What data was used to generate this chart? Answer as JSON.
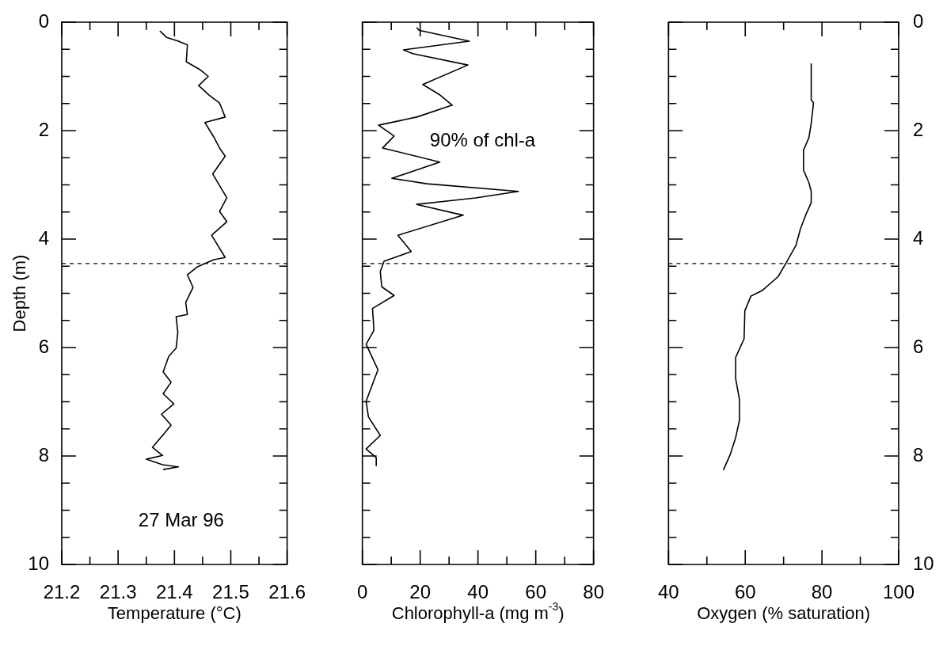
{
  "chart_data": [
    {
      "type": "line",
      "xlabel": "Temperature (°C)",
      "ylabel": "Depth (m)",
      "marker": "none",
      "xlim": [
        21.2,
        21.6
      ],
      "xticks": [
        21.2,
        {
          "value": 21.25,
          "label": null
        },
        21.3,
        {
          "value": 21.35,
          "label": null
        },
        21.4,
        {
          "value": 21.45,
          "label": null
        },
        21.5,
        {
          "value": 21.55,
          "label": null
        },
        21.6
      ],
      "ylim": [
        10,
        0
      ],
      "yticks": [
        0,
        {
          "value": 0.5,
          "label": null
        },
        {
          "value": 1,
          "label": null
        },
        {
          "value": 1.5,
          "label": null
        },
        2,
        {
          "value": 2.5,
          "label": null
        },
        {
          "value": 3,
          "label": null
        },
        {
          "value": 3.5,
          "label": null
        },
        4,
        {
          "value": 4.5,
          "label": null
        },
        {
          "value": 5,
          "label": null
        },
        {
          "value": 5.5,
          "label": null
        },
        6,
        {
          "value": 6.5,
          "label": null
        },
        {
          "value": 7,
          "label": null
        },
        {
          "value": 7.5,
          "label": null
        },
        8,
        {
          "value": 8.5,
          "label": null
        },
        {
          "value": 9,
          "label": null
        },
        {
          "value": 9.5,
          "label": null
        },
        10
      ],
      "series": [
        {
          "color": "#000000",
          "x": [
            21.374,
            21.386,
            21.407,
            21.423,
            21.421,
            21.446,
            21.46,
            21.443,
            21.461,
            21.48,
            21.49,
            21.454,
            21.47,
            21.48,
            21.49,
            21.468,
            21.493,
            21.48,
            21.493,
            21.466,
            21.49,
            21.47,
            21.441,
            21.423,
            21.433,
            21.42,
            21.423,
            21.403,
            21.406,
            21.403,
            21.39,
            21.38,
            21.394,
            21.38,
            21.399,
            21.377,
            21.394,
            21.379,
            21.361,
            21.379,
            21.35,
            21.379,
            21.407,
            21.38
          ],
          "values": [
            0.16,
            0.28,
            0.35,
            0.42,
            0.73,
            0.88,
            1.0,
            1.17,
            1.34,
            1.49,
            1.75,
            1.85,
            2.12,
            2.32,
            2.47,
            2.8,
            3.24,
            3.49,
            3.68,
            3.93,
            4.34,
            4.38,
            4.51,
            4.66,
            4.89,
            5.17,
            5.39,
            5.43,
            5.72,
            6.01,
            6.16,
            6.45,
            6.64,
            6.85,
            7.04,
            7.23,
            7.43,
            7.62,
            7.84,
            7.99,
            8.06,
            8.16,
            8.2,
            8.25
          ]
        }
      ],
      "ref_lines": [
        {
          "axis": "y",
          "value": 4.45,
          "line_style": "dashed"
        }
      ],
      "annotations": [
        "27 Mar 96"
      ]
    },
    {
      "type": "line",
      "xlabel": "Chlorophyll-a (mg m$^{-3}$)",
      "marker": "none",
      "tick_labels": "x",
      "xlim": [
        0,
        80
      ],
      "xticks": [
        0,
        {
          "value": 10,
          "label": null
        },
        20,
        {
          "value": 30,
          "label": null
        },
        40,
        {
          "value": 50,
          "label": null
        },
        60,
        {
          "value": 70,
          "label": null
        },
        80
      ],
      "ylim": [
        10,
        0
      ],
      "yticks": [
        0,
        {
          "value": 0.5,
          "label": null
        },
        {
          "value": 1,
          "label": null
        },
        {
          "value": 1.5,
          "label": null
        },
        2,
        {
          "value": 2.5,
          "label": null
        },
        {
          "value": 3,
          "label": null
        },
        {
          "value": 3.5,
          "label": null
        },
        4,
        {
          "value": 4.5,
          "label": null
        },
        {
          "value": 5,
          "label": null
        },
        {
          "value": 5.5,
          "label": null
        },
        6,
        {
          "value": 6.5,
          "label": null
        },
        {
          "value": 7,
          "label": null
        },
        {
          "value": 7.5,
          "label": null
        },
        8,
        {
          "value": 8.5,
          "label": null
        },
        {
          "value": 9,
          "label": null
        },
        {
          "value": 9.5,
          "label": null
        },
        10
      ],
      "series": [
        {
          "color": "#000000",
          "x": [
            18.8,
            19.6,
            37.0,
            14.2,
            17.4,
            36.5,
            20.9,
            26.8,
            31.1,
            18.8,
            5.6,
            11.0,
            7.0,
            26.8,
            10.2,
            22.3,
            54.0,
            39.2,
            18.8,
            34.9,
            12.3,
            16.9,
            7.5,
            6.2,
            6.7,
            11.0,
            3.5,
            4.0,
            1.3,
            5.4,
            1.3,
            2.1,
            6.2,
            1.3,
            4.8,
            4.8
          ],
          "values": [
            0.1,
            0.15,
            0.35,
            0.51,
            0.58,
            0.79,
            1.15,
            1.34,
            1.53,
            1.75,
            1.9,
            2.1,
            2.32,
            2.58,
            2.88,
            2.98,
            3.12,
            3.24,
            3.36,
            3.56,
            3.93,
            4.23,
            4.41,
            4.6,
            4.88,
            5.04,
            5.28,
            5.68,
            5.94,
            6.41,
            6.99,
            7.28,
            7.62,
            7.87,
            8.03,
            8.18
          ]
        }
      ],
      "ref_lines": [
        {
          "axis": "y",
          "value": 4.45,
          "line_style": "dashed"
        }
      ],
      "annotations": [
        "90% of chl-a"
      ]
    },
    {
      "type": "line",
      "xlabel": "Oxygen (% saturation)",
      "marker": "none",
      "xlim": [
        40,
        100
      ],
      "xticks": [
        40,
        {
          "value": 50,
          "label": null
        },
        60,
        {
          "value": 70,
          "label": null
        },
        80,
        {
          "value": 90,
          "label": null
        },
        100
      ],
      "y2lim": [
        10,
        0
      ],
      "y2ticks": [
        0,
        {
          "value": 0.5,
          "label": null
        },
        {
          "value": 1,
          "label": null
        },
        {
          "value": 1.5,
          "label": null
        },
        2,
        {
          "value": 2.5,
          "label": null
        },
        {
          "value": 3,
          "label": null
        },
        {
          "value": 3.5,
          "label": null
        },
        4,
        {
          "value": 4.5,
          "label": null
        },
        {
          "value": 5,
          "label": null
        },
        {
          "value": 5.5,
          "label": null
        },
        6,
        {
          "value": 6.5,
          "label": null
        },
        {
          "value": 7,
          "label": null
        },
        {
          "value": 7.5,
          "label": null
        },
        8,
        {
          "value": 8.5,
          "label": null
        },
        {
          "value": 9,
          "label": null
        },
        {
          "value": 9.5,
          "label": null
        },
        10
      ],
      "series": [
        {
          "color": "#000000",
          "axis": "y2",
          "x": [
            77.2,
            77.2,
            77.8,
            77.2,
            76.6,
            75.2,
            75.2,
            76.6,
            77.2,
            77.2,
            75.8,
            74.4,
            73.2,
            70.8,
            68.6,
            64.4,
            61.5,
            59.9,
            59.7,
            57.5,
            57.5,
            58.5,
            58.5,
            57.5,
            56.1,
            54.3
          ],
          "values": [
            0.77,
            1.43,
            1.49,
            1.87,
            2.13,
            2.36,
            2.73,
            2.96,
            3.12,
            3.33,
            3.55,
            3.81,
            4.12,
            4.42,
            4.69,
            4.95,
            5.05,
            5.32,
            5.84,
            6.18,
            6.57,
            6.96,
            7.34,
            7.66,
            7.97,
            8.26
          ]
        }
      ],
      "ref_lines": [
        {
          "axis": "y2",
          "value": 4.45,
          "line_style": "dashed"
        }
      ]
    }
  ]
}
